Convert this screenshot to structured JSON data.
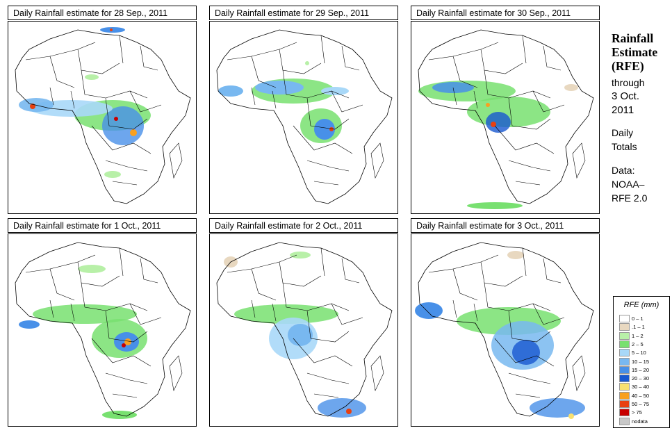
{
  "panels": [
    {
      "title": "Daily Rainfall estimate for  28 Sep., 2011"
    },
    {
      "title": "Daily Rainfall estimate for  29 Sep., 2011"
    },
    {
      "title": "Daily Rainfall estimate for  30 Sep., 2011"
    },
    {
      "title": "Daily Rainfall estimate for  1 Oct., 2011"
    },
    {
      "title": "Daily Rainfall estimate for  2 Oct., 2011"
    },
    {
      "title": "Daily Rainfall estimate for  3 Oct., 2011"
    }
  ],
  "side": {
    "line1": "Rainfall",
    "line2": "Estimate",
    "line3": "(RFE)",
    "through": "through",
    "date1": "3 Oct.",
    "date2": "2011",
    "daily": "Daily",
    "totals": "Totals",
    "data_label": "Data:",
    "source1": "NOAA–",
    "source2": "RFE 2.0"
  },
  "legend": {
    "title": "RFE (mm)",
    "items": [
      {
        "label": "0 – 1",
        "color": "#ffffff"
      },
      {
        "label": ".1 – 1",
        "color": "#e8d8c0"
      },
      {
        "label": "1 – 2",
        "color": "#b8f0a8"
      },
      {
        "label": "2 – 5",
        "color": "#78e070"
      },
      {
        "label": "5 – 10",
        "color": "#a8d8f8"
      },
      {
        "label": "10 – 15",
        "color": "#78b8f0"
      },
      {
        "label": "15 – 20",
        "color": "#4890e8"
      },
      {
        "label": "20 – 30",
        "color": "#1858d0"
      },
      {
        "label": "30 – 40",
        "color": "#f8e070"
      },
      {
        "label": "40 – 50",
        "color": "#f8a020"
      },
      {
        "label": "50 – 75",
        "color": "#e84010"
      },
      {
        "label": "> 75",
        "color": "#c80000"
      },
      {
        "label": "nodata",
        "color": "#c8c8c8"
      }
    ]
  }
}
